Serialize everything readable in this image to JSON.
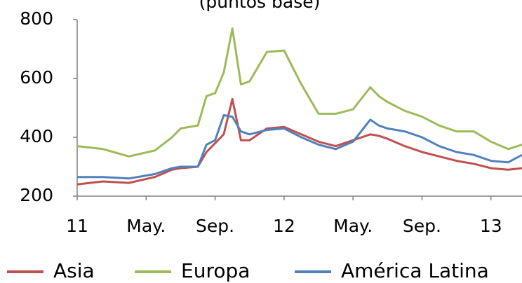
{
  "chart_data": {
    "type": "line",
    "subtitle": "(puntos base)",
    "x": [
      0,
      1.5,
      3,
      4.5,
      5.5,
      6,
      7,
      7.5,
      8,
      8.5,
      9,
      9.5,
      10,
      11,
      12,
      13,
      14,
      15,
      16,
      17,
      17.5,
      18,
      19,
      20,
      21,
      22,
      23,
      24,
      25,
      25.8
    ],
    "series": [
      {
        "name": "Asia",
        "color": "#c0504d",
        "values": [
          240,
          250,
          245,
          265,
          290,
          295,
          300,
          350,
          380,
          410,
          530,
          390,
          390,
          430,
          435,
          410,
          385,
          370,
          390,
          410,
          405,
          395,
          370,
          350,
          335,
          320,
          310,
          295,
          290,
          295
        ]
      },
      {
        "name": "Europa",
        "color": "#9bbb59",
        "values": [
          370,
          360,
          335,
          355,
          400,
          430,
          440,
          540,
          550,
          620,
          770,
          580,
          590,
          690,
          695,
          580,
          480,
          480,
          495,
          570,
          540,
          520,
          490,
          470,
          440,
          420,
          420,
          385,
          360,
          375
        ]
      },
      {
        "name": "América Latina",
        "color": "#4f81bd",
        "values": [
          265,
          265,
          260,
          275,
          295,
          300,
          300,
          375,
          390,
          475,
          470,
          420,
          410,
          425,
          430,
          400,
          375,
          360,
          385,
          460,
          440,
          430,
          420,
          400,
          370,
          350,
          340,
          320,
          315,
          340
        ]
      }
    ],
    "xlim": [
      0,
      25.8
    ],
    "xticks": [
      {
        "value": 0,
        "label": "11"
      },
      {
        "value": 4,
        "label": "May."
      },
      {
        "value": 8,
        "label": "Sep."
      },
      {
        "value": 12,
        "label": "12"
      },
      {
        "value": 16,
        "label": "May."
      },
      {
        "value": 20,
        "label": "Sep."
      },
      {
        "value": 24,
        "label": "13"
      }
    ],
    "ylim": [
      200,
      800
    ],
    "yticks": [
      200,
      400,
      600,
      800
    ],
    "grid": false,
    "legend": "bottom"
  }
}
